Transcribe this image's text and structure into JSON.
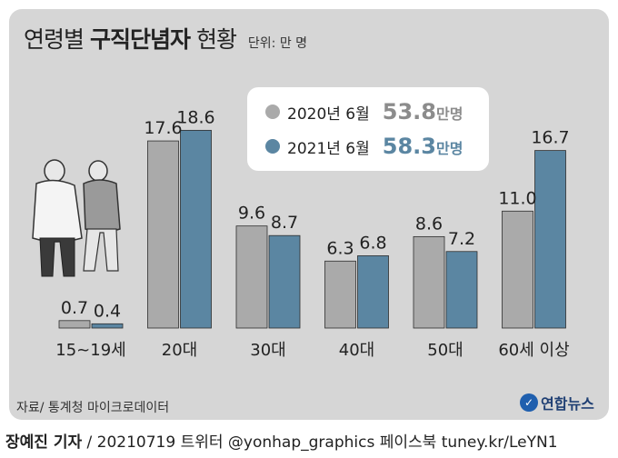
{
  "title_light": "연령별",
  "title_bold": "구직단념자",
  "title_tail": "현황",
  "unit_label": "단위: 만 명",
  "legend": [
    {
      "label": "2020년 6월",
      "total": "53.8",
      "suffix": "만명",
      "color": "#aaaaaa",
      "total_color": "#8c8c8c"
    },
    {
      "label": "2021년 6월",
      "total": "58.3",
      "suffix": "만명",
      "color": "#5b86a2",
      "total_color": "#5b86a2"
    }
  ],
  "chart_data": {
    "type": "bar",
    "title": "연령별 구직단념자 현황",
    "unit": "단위: 만 명",
    "categories": [
      "15~19세",
      "20대",
      "30대",
      "40대",
      "50대",
      "60세 이상"
    ],
    "series": [
      {
        "name": "2020년 6월",
        "values": [
          0.7,
          17.6,
          9.6,
          6.3,
          8.6,
          11.0
        ],
        "labels": [
          "0.7",
          "17.6",
          "9.6",
          "6.3",
          "8.6",
          "11.0"
        ],
        "color": "#aaaaaa"
      },
      {
        "name": "2021년 6월",
        "values": [
          0.4,
          18.6,
          8.7,
          6.8,
          7.2,
          16.7
        ],
        "labels": [
          "0.4",
          "18.6",
          "8.7",
          "6.8",
          "7.2",
          "16.7"
        ],
        "color": "#5b86a2"
      }
    ],
    "ylim": [
      0,
      20
    ],
    "grid": false,
    "legend_position": "top-center"
  },
  "source": "자료/ 통계청 마이크로데이터",
  "logo_text": "연합뉴스",
  "footer_author": "장예진 기자",
  "footer_rest": " / 20210719 트위터 @yonhap_graphics  페이스북 tuney.kr/LeYN1"
}
